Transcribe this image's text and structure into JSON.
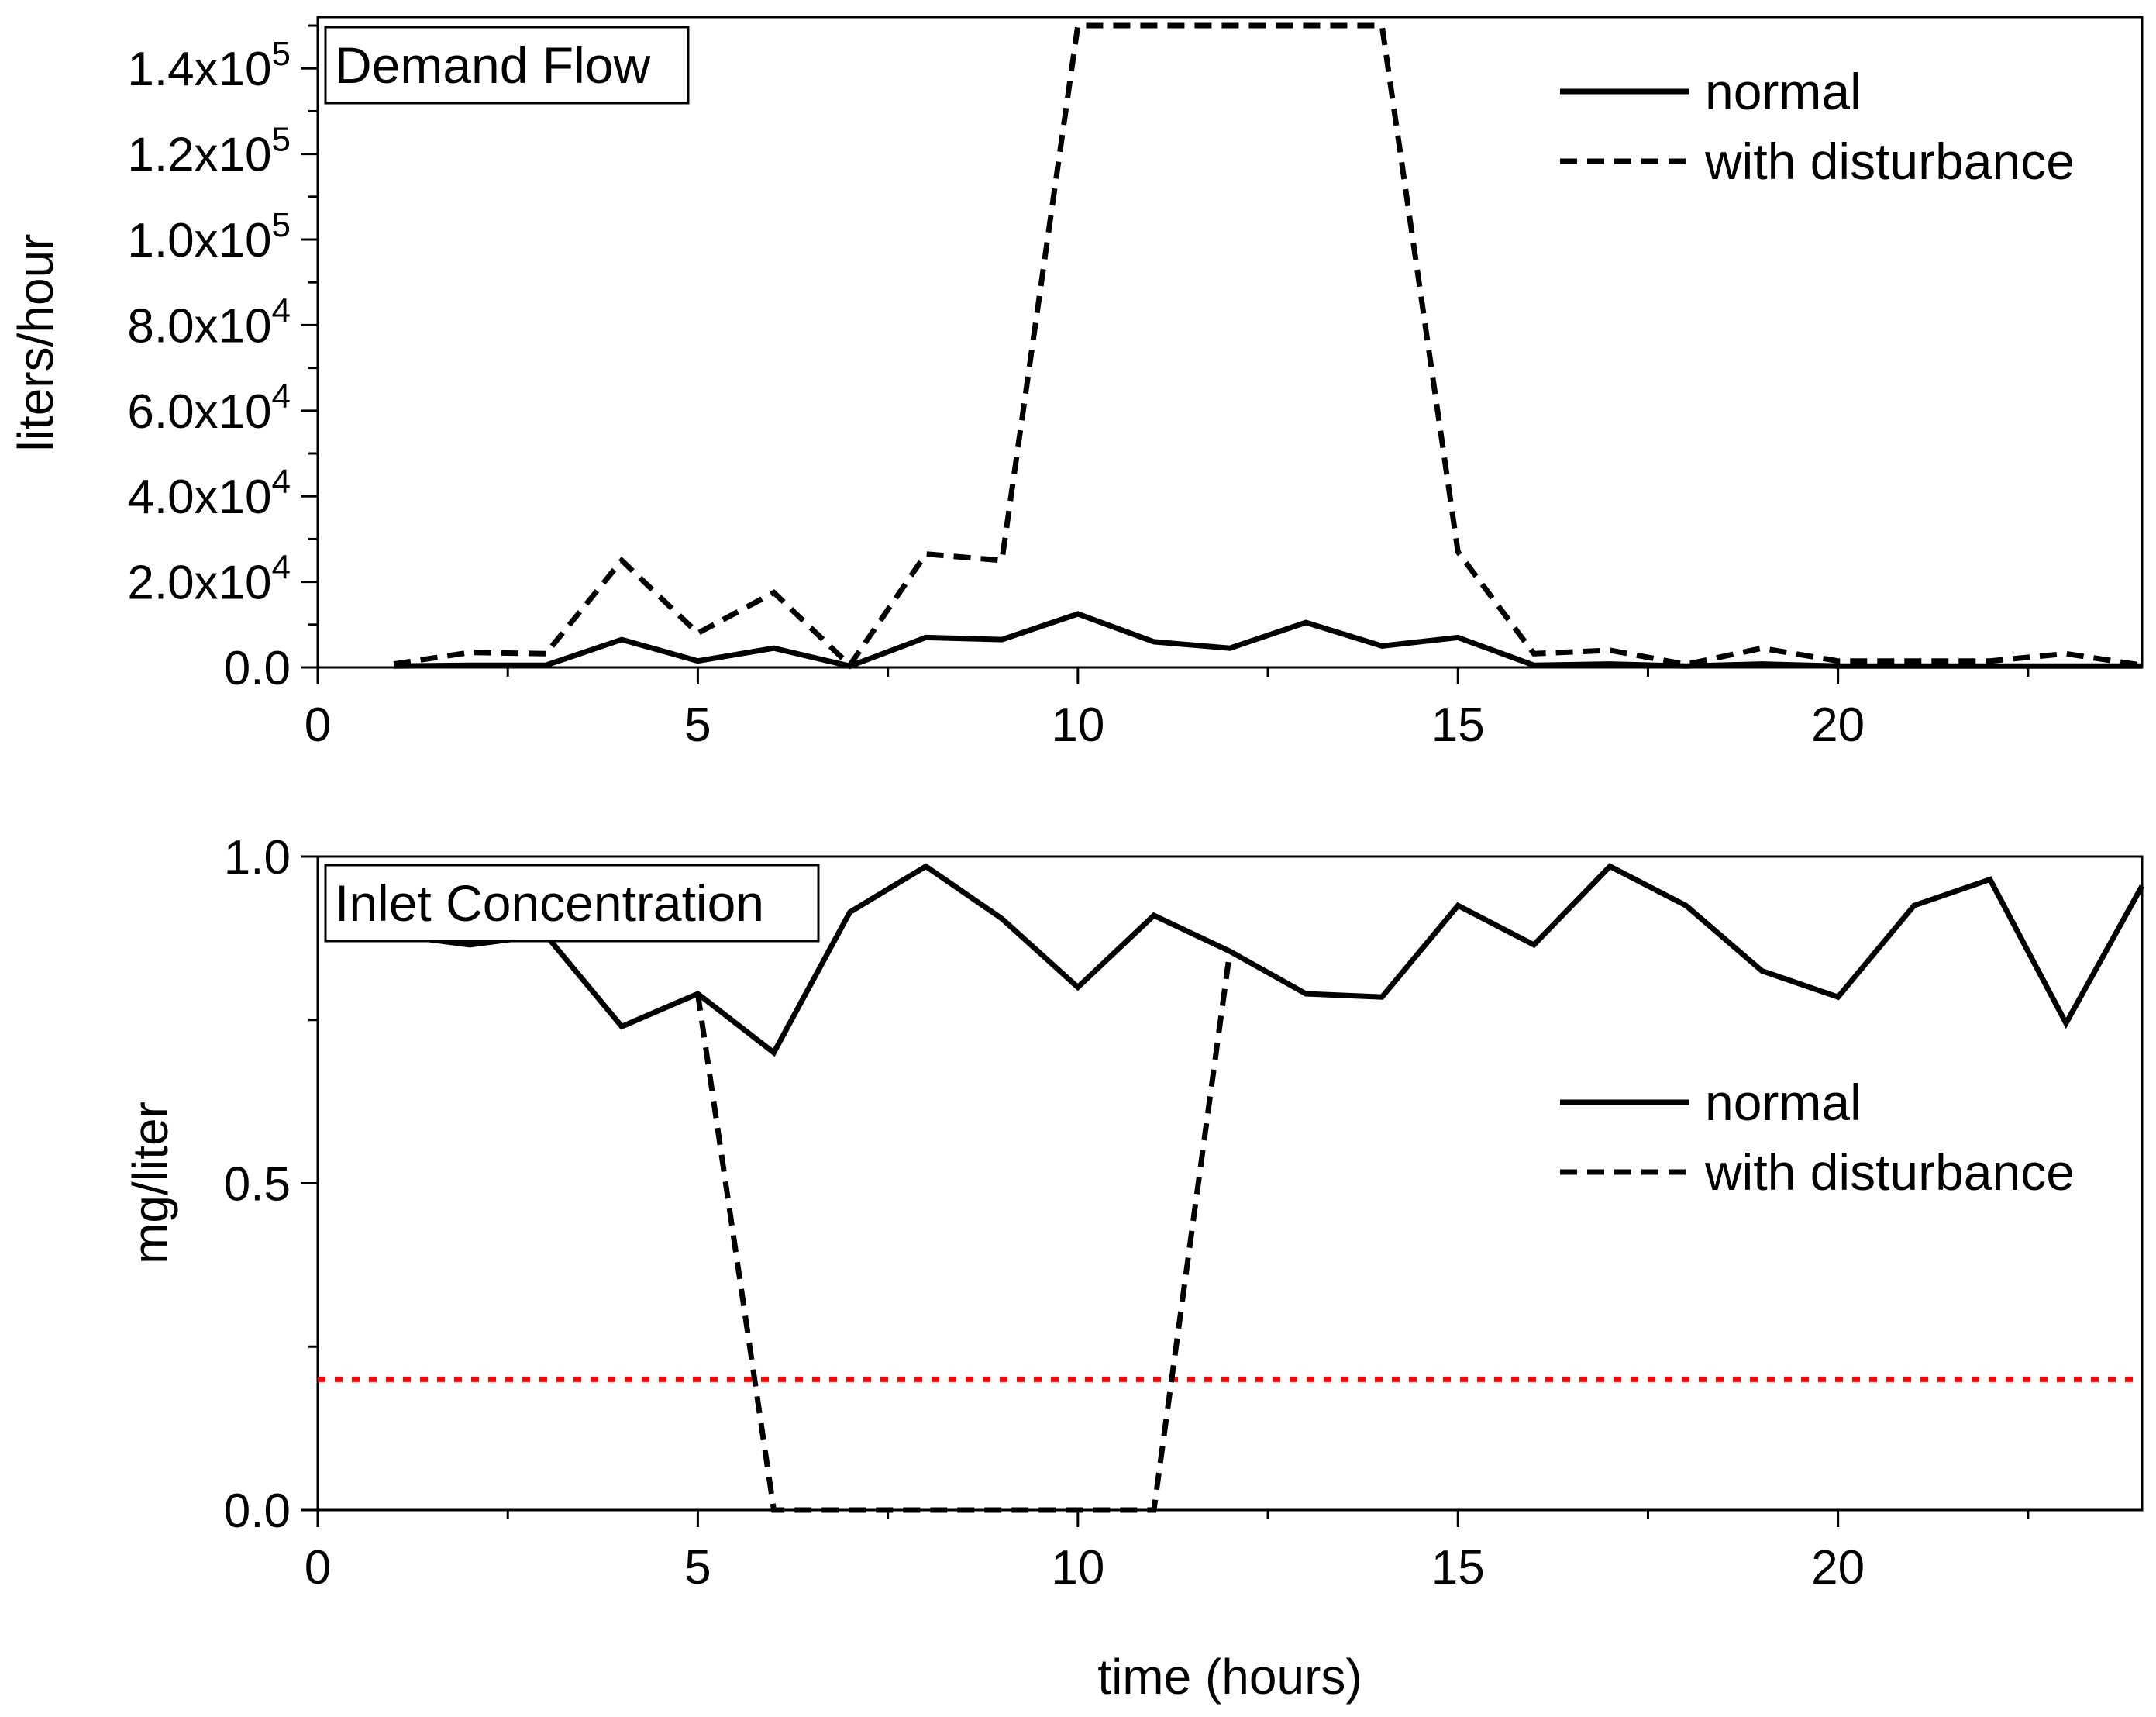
{
  "chart_data": [
    {
      "type": "line",
      "title": "Demand Flow",
      "xlabel": "",
      "ylabel": "liters/hour",
      "xlim": [
        0,
        24
      ],
      "ylim": [
        0,
        152000
      ],
      "x_ticks": [
        0,
        5,
        10,
        15,
        20
      ],
      "x_tick_labels": [
        "0",
        "5",
        "10",
        "15",
        "20"
      ],
      "y_ticks": [
        0,
        20000,
        40000,
        60000,
        80000,
        100000,
        120000,
        140000
      ],
      "y_tick_labels": [
        {
          "mant": "0.0",
          "exp": ""
        },
        {
          "mant": "2.0x10",
          "exp": "4"
        },
        {
          "mant": "4.0x10",
          "exp": "4"
        },
        {
          "mant": "6.0x10",
          "exp": "4"
        },
        {
          "mant": "8.0x10",
          "exp": "4"
        },
        {
          "mant": "1.0x10",
          "exp": "5"
        },
        {
          "mant": "1.2x10",
          "exp": "5"
        },
        {
          "mant": "1.4x10",
          "exp": "5"
        }
      ],
      "legend_position": "top-right",
      "series": [
        {
          "name": "normal",
          "style": "solid",
          "color": "#000000",
          "x": [
            1,
            2,
            3,
            4,
            5,
            6,
            7,
            8,
            9,
            10,
            11,
            12,
            13,
            14,
            15,
            16,
            17,
            18,
            19,
            20,
            21,
            22,
            23,
            24
          ],
          "values": [
            300,
            500,
            500,
            6500,
            1500,
            4500,
            300,
            7000,
            6500,
            12500,
            6000,
            4500,
            10500,
            5000,
            7000,
            500,
            800,
            300,
            800,
            300,
            300,
            300,
            300,
            300
          ]
        },
        {
          "name": "with disturbance",
          "style": "dashed",
          "color": "#000000",
          "x": [
            1,
            2,
            3,
            4,
            5,
            6,
            7,
            8,
            9,
            10,
            11,
            12,
            13,
            14,
            15,
            16,
            17,
            18,
            19,
            20,
            21,
            22,
            23,
            24
          ],
          "values": [
            800,
            3500,
            3200,
            25000,
            8000,
            17500,
            500,
            26500,
            25000,
            150000,
            150000,
            150000,
            150000,
            150000,
            27000,
            3200,
            4000,
            700,
            4500,
            1500,
            1500,
            1500,
            3200,
            500
          ]
        }
      ]
    },
    {
      "type": "line",
      "title": "Inlet Concentration",
      "xlabel": "time (hours)",
      "ylabel": "mg/liter",
      "xlim": [
        0,
        24
      ],
      "ylim": [
        0,
        1.0
      ],
      "x_ticks": [
        0,
        5,
        10,
        15,
        20
      ],
      "x_tick_labels": [
        "0",
        "5",
        "10",
        "15",
        "20"
      ],
      "y_ticks": [
        0,
        0.5,
        1.0
      ],
      "y_tick_labels": [
        "0.0",
        "0.5",
        "1.0"
      ],
      "legend_position": "center-right",
      "threshold": {
        "value": 0.2,
        "color": "#ff0000",
        "style": "dotted"
      },
      "series": [
        {
          "name": "normal",
          "style": "solid",
          "color": "#000000",
          "x": [
            1,
            2,
            3,
            4,
            5,
            6,
            7,
            8,
            9,
            10,
            11,
            12,
            13,
            14,
            15,
            16,
            17,
            18,
            19,
            20,
            21,
            22,
            23,
            24
          ],
          "values": [
            0.88,
            0.865,
            0.88,
            0.74,
            0.79,
            0.7,
            0.915,
            0.985,
            0.905,
            0.8,
            0.91,
            0.855,
            0.79,
            0.785,
            0.925,
            0.865,
            0.985,
            0.925,
            0.825,
            0.785,
            0.925,
            0.965,
            0.745,
            0.955
          ]
        },
        {
          "name": "with disturbance",
          "style": "dashed",
          "color": "#000000",
          "x": [
            5,
            6,
            7,
            8,
            9,
            10,
            11,
            12
          ],
          "values": [
            0.79,
            0,
            0,
            0,
            0,
            0,
            0,
            0.855
          ]
        }
      ]
    }
  ]
}
